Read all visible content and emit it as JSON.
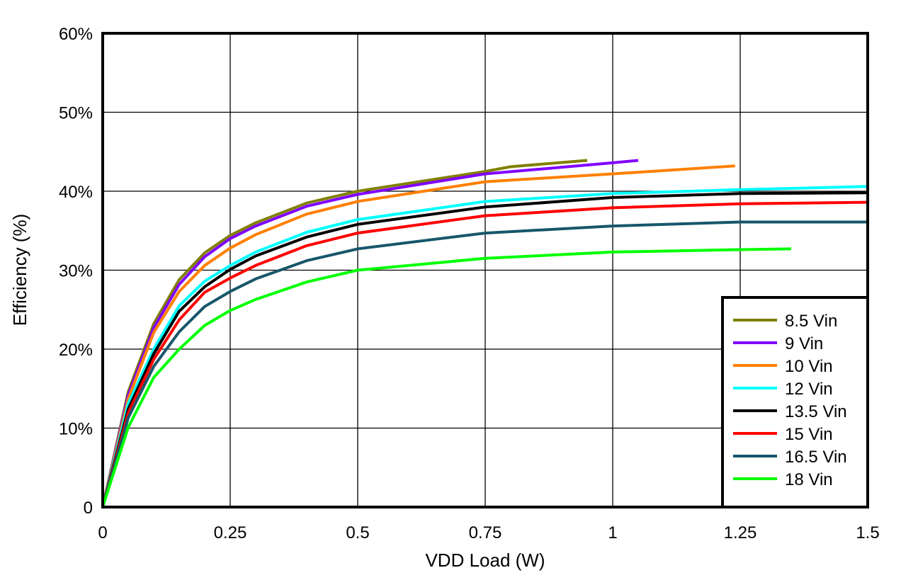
{
  "chart_data": {
    "type": "line",
    "title": "",
    "xlabel": "VDD Load (W)",
    "ylabel": "Efficiency (%)",
    "xlim": [
      0,
      1.5
    ],
    "ylim": [
      0,
      60
    ],
    "xticks": [
      0,
      0.25,
      0.5,
      0.75,
      1,
      1.25,
      1.5
    ],
    "xtick_labels": [
      "0",
      "0.25",
      "0.5",
      "0.75",
      "1",
      "1.25",
      "1.5"
    ],
    "yticks": [
      0,
      10,
      20,
      30,
      40,
      50,
      60
    ],
    "ytick_labels": [
      "0",
      "10%",
      "20%",
      "30%",
      "40%",
      "50%",
      "60%"
    ],
    "grid": true,
    "legend_position": "bottom-right",
    "series": [
      {
        "name": "8.5 Vin",
        "color": "#808000",
        "x": [
          0,
          0.05,
          0.1,
          0.15,
          0.2,
          0.25,
          0.3,
          0.4,
          0.5,
          0.75,
          0.8,
          0.95
        ],
        "y": [
          0,
          14.6,
          23.2,
          28.8,
          32.2,
          34.4,
          36.0,
          38.5,
          40.0,
          42.5,
          43.1,
          43.9
        ]
      },
      {
        "name": "9 Vin",
        "color": "#8000FF",
        "x": [
          0,
          0.05,
          0.1,
          0.15,
          0.2,
          0.25,
          0.3,
          0.4,
          0.5,
          0.75,
          1.0,
          1.05
        ],
        "y": [
          0,
          14.2,
          22.7,
          28.2,
          31.7,
          34.0,
          35.6,
          38.1,
          39.6,
          42.2,
          43.6,
          43.9
        ]
      },
      {
        "name": "10 Vin",
        "color": "#FF8000",
        "x": [
          0,
          0.05,
          0.1,
          0.15,
          0.2,
          0.25,
          0.3,
          0.4,
          0.5,
          0.75,
          1.0,
          1.24
        ],
        "y": [
          0,
          13.7,
          22.1,
          27.3,
          30.6,
          32.8,
          34.5,
          37.1,
          38.7,
          41.2,
          42.2,
          43.2
        ]
      },
      {
        "name": "12 Vin",
        "color": "#00FFFF",
        "x": [
          0,
          0.05,
          0.1,
          0.15,
          0.2,
          0.25,
          0.3,
          0.4,
          0.5,
          0.75,
          1.0,
          1.25,
          1.5
        ],
        "y": [
          0,
          13.1,
          20.0,
          25.5,
          28.6,
          30.6,
          32.3,
          34.8,
          36.4,
          38.7,
          39.7,
          40.2,
          40.6
        ]
      },
      {
        "name": "13.5 Vin",
        "color": "#000000",
        "x": [
          0,
          0.05,
          0.1,
          0.15,
          0.2,
          0.25,
          0.3,
          0.4,
          0.5,
          0.75,
          1.0,
          1.25,
          1.5
        ],
        "y": [
          0,
          12.4,
          19.4,
          24.8,
          27.9,
          30.1,
          31.8,
          34.2,
          35.8,
          38.0,
          39.2,
          39.7,
          39.8
        ]
      },
      {
        "name": "15 Vin",
        "color": "#FF0000",
        "x": [
          0,
          0.05,
          0.1,
          0.15,
          0.2,
          0.25,
          0.3,
          0.4,
          0.5,
          0.75,
          1.0,
          1.25,
          1.5
        ],
        "y": [
          0,
          11.9,
          18.7,
          23.7,
          27.2,
          29.0,
          30.6,
          33.1,
          34.7,
          36.9,
          37.9,
          38.4,
          38.6
        ]
      },
      {
        "name": "16.5 Vin",
        "color": "#17566A",
        "x": [
          0,
          0.05,
          0.1,
          0.15,
          0.2,
          0.25,
          0.3,
          0.4,
          0.5,
          0.75,
          1.0,
          1.25,
          1.5
        ],
        "y": [
          0,
          11.3,
          17.8,
          22.2,
          25.4,
          27.3,
          28.9,
          31.2,
          32.7,
          34.7,
          35.6,
          36.1,
          36.1
        ]
      },
      {
        "name": "18 Vin",
        "color": "#00FF00",
        "x": [
          0,
          0.05,
          0.1,
          0.15,
          0.2,
          0.25,
          0.3,
          0.4,
          0.5,
          0.75,
          1.0,
          1.25,
          1.35
        ],
        "y": [
          0,
          10.1,
          16.4,
          20.0,
          23.0,
          24.9,
          26.3,
          28.5,
          30.0,
          31.5,
          32.3,
          32.6,
          32.7
        ]
      }
    ]
  }
}
